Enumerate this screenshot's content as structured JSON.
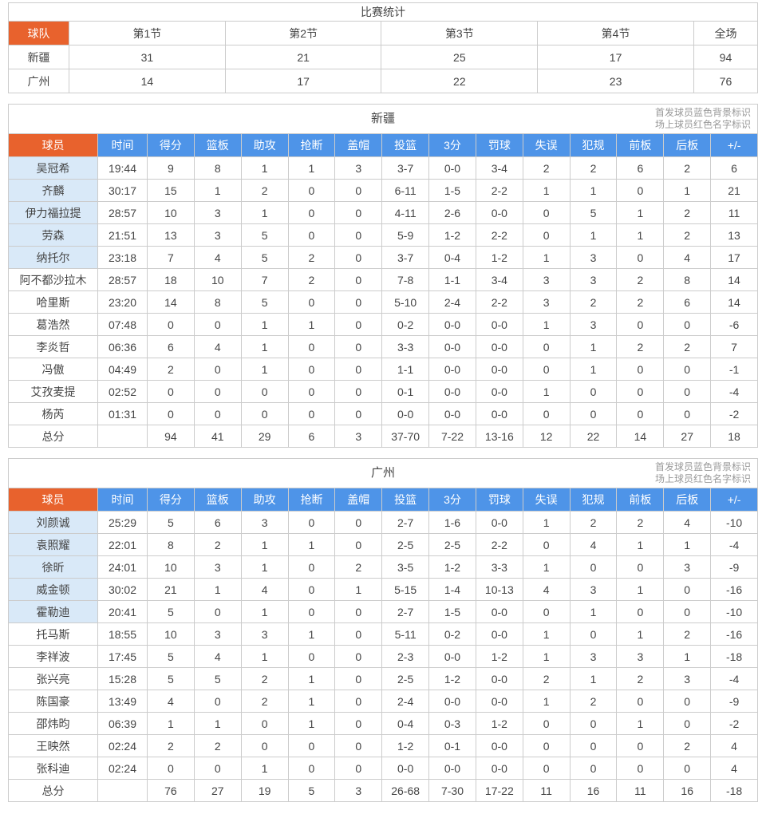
{
  "colors": {
    "header_orange": "#e8622d",
    "header_blue": "#4e94e8",
    "starter_row_bg": "#d9e9f8",
    "border": "#cccccc",
    "legend_text": "#999999"
  },
  "legend": {
    "line1": "首发球员蓝色背景标识",
    "line2": "场上球员红色名字标识"
  },
  "quarter_table": {
    "title": "比赛统计",
    "headers": [
      "球队",
      "第1节",
      "第2节",
      "第3节",
      "第4节",
      "全场"
    ],
    "rows": [
      {
        "team": "新疆",
        "values": [
          "31",
          "21",
          "25",
          "17",
          "94"
        ]
      },
      {
        "team": "广州",
        "values": [
          "14",
          "17",
          "22",
          "23",
          "76"
        ]
      }
    ]
  },
  "player_headers": [
    "球员",
    "时间",
    "得分",
    "篮板",
    "助攻",
    "抢断",
    "盖帽",
    "投篮",
    "3分",
    "罚球",
    "失误",
    "犯规",
    "前板",
    "后板",
    "+/-"
  ],
  "team_tables": [
    {
      "title": "新疆",
      "players": [
        {
          "name": "吴冠希",
          "starter": true,
          "stats": [
            "19:44",
            "9",
            "8",
            "1",
            "1",
            "3",
            "3-7",
            "0-0",
            "3-4",
            "2",
            "2",
            "6",
            "2",
            "6"
          ]
        },
        {
          "name": "齐麟",
          "starter": true,
          "stats": [
            "30:17",
            "15",
            "1",
            "2",
            "0",
            "0",
            "6-11",
            "1-5",
            "2-2",
            "1",
            "1",
            "0",
            "1",
            "21"
          ]
        },
        {
          "name": "伊力福拉提",
          "starter": true,
          "stats": [
            "28:57",
            "10",
            "3",
            "1",
            "0",
            "0",
            "4-11",
            "2-6",
            "0-0",
            "0",
            "5",
            "1",
            "2",
            "11"
          ]
        },
        {
          "name": "劳森",
          "starter": true,
          "stats": [
            "21:51",
            "13",
            "3",
            "5",
            "0",
            "0",
            "5-9",
            "1-2",
            "2-2",
            "0",
            "1",
            "1",
            "2",
            "13"
          ]
        },
        {
          "name": "纳托尔",
          "starter": true,
          "stats": [
            "23:18",
            "7",
            "4",
            "5",
            "2",
            "0",
            "3-7",
            "0-4",
            "1-2",
            "1",
            "3",
            "0",
            "4",
            "17"
          ]
        },
        {
          "name": "阿不都沙拉木",
          "starter": false,
          "stats": [
            "28:57",
            "18",
            "10",
            "7",
            "2",
            "0",
            "7-8",
            "1-1",
            "3-4",
            "3",
            "3",
            "2",
            "8",
            "14"
          ]
        },
        {
          "name": "哈里斯",
          "starter": false,
          "stats": [
            "23:20",
            "14",
            "8",
            "5",
            "0",
            "0",
            "5-10",
            "2-4",
            "2-2",
            "3",
            "2",
            "2",
            "6",
            "14"
          ]
        },
        {
          "name": "葛浩然",
          "starter": false,
          "stats": [
            "07:48",
            "0",
            "0",
            "1",
            "1",
            "0",
            "0-2",
            "0-0",
            "0-0",
            "1",
            "3",
            "0",
            "0",
            "-6"
          ]
        },
        {
          "name": "李炎哲",
          "starter": false,
          "stats": [
            "06:36",
            "6",
            "4",
            "1",
            "0",
            "0",
            "3-3",
            "0-0",
            "0-0",
            "0",
            "1",
            "2",
            "2",
            "7"
          ]
        },
        {
          "name": "冯傲",
          "starter": false,
          "stats": [
            "04:49",
            "2",
            "0",
            "1",
            "0",
            "0",
            "1-1",
            "0-0",
            "0-0",
            "0",
            "1",
            "0",
            "0",
            "-1"
          ]
        },
        {
          "name": "艾孜麦提",
          "starter": false,
          "stats": [
            "02:52",
            "0",
            "0",
            "0",
            "0",
            "0",
            "0-1",
            "0-0",
            "0-0",
            "1",
            "0",
            "0",
            "0",
            "-4"
          ]
        },
        {
          "name": "杨芮",
          "starter": false,
          "stats": [
            "01:31",
            "0",
            "0",
            "0",
            "0",
            "0",
            "0-0",
            "0-0",
            "0-0",
            "0",
            "0",
            "0",
            "0",
            "-2"
          ]
        }
      ],
      "totals": {
        "name": "总分",
        "stats": [
          "",
          "94",
          "41",
          "29",
          "6",
          "3",
          "37-70",
          "7-22",
          "13-16",
          "12",
          "22",
          "14",
          "27",
          "18"
        ]
      }
    },
    {
      "title": "广州",
      "players": [
        {
          "name": "刘颜诚",
          "starter": true,
          "stats": [
            "25:29",
            "5",
            "6",
            "3",
            "0",
            "0",
            "2-7",
            "1-6",
            "0-0",
            "1",
            "2",
            "2",
            "4",
            "-10"
          ]
        },
        {
          "name": "袁照耀",
          "starter": true,
          "stats": [
            "22:01",
            "8",
            "2",
            "1",
            "1",
            "0",
            "2-5",
            "2-5",
            "2-2",
            "0",
            "4",
            "1",
            "1",
            "-4"
          ]
        },
        {
          "name": "徐昕",
          "starter": true,
          "stats": [
            "24:01",
            "10",
            "3",
            "1",
            "0",
            "2",
            "3-5",
            "1-2",
            "3-3",
            "1",
            "0",
            "0",
            "3",
            "-9"
          ]
        },
        {
          "name": "威金顿",
          "starter": true,
          "stats": [
            "30:02",
            "21",
            "1",
            "4",
            "0",
            "1",
            "5-15",
            "1-4",
            "10-13",
            "4",
            "3",
            "1",
            "0",
            "-16"
          ]
        },
        {
          "name": "霍勒迪",
          "starter": true,
          "stats": [
            "20:41",
            "5",
            "0",
            "1",
            "0",
            "0",
            "2-7",
            "1-5",
            "0-0",
            "0",
            "1",
            "0",
            "0",
            "-10"
          ]
        },
        {
          "name": "托马斯",
          "starter": false,
          "stats": [
            "18:55",
            "10",
            "3",
            "3",
            "1",
            "0",
            "5-11",
            "0-2",
            "0-0",
            "1",
            "0",
            "1",
            "2",
            "-16"
          ]
        },
        {
          "name": "李祥波",
          "starter": false,
          "stats": [
            "17:45",
            "5",
            "4",
            "1",
            "0",
            "0",
            "2-3",
            "0-0",
            "1-2",
            "1",
            "3",
            "3",
            "1",
            "-18"
          ]
        },
        {
          "name": "张兴亮",
          "starter": false,
          "stats": [
            "15:28",
            "5",
            "5",
            "2",
            "1",
            "0",
            "2-5",
            "1-2",
            "0-0",
            "2",
            "1",
            "2",
            "3",
            "-4"
          ]
        },
        {
          "name": "陈国豪",
          "starter": false,
          "stats": [
            "13:49",
            "4",
            "0",
            "2",
            "1",
            "0",
            "2-4",
            "0-0",
            "0-0",
            "1",
            "2",
            "0",
            "0",
            "-9"
          ]
        },
        {
          "name": "邵炜昀",
          "starter": false,
          "stats": [
            "06:39",
            "1",
            "1",
            "0",
            "1",
            "0",
            "0-4",
            "0-3",
            "1-2",
            "0",
            "0",
            "1",
            "0",
            "-2"
          ]
        },
        {
          "name": "王映然",
          "starter": false,
          "stats": [
            "02:24",
            "2",
            "2",
            "0",
            "0",
            "0",
            "1-2",
            "0-1",
            "0-0",
            "0",
            "0",
            "0",
            "2",
            "4"
          ]
        },
        {
          "name": "张科迪",
          "starter": false,
          "stats": [
            "02:24",
            "0",
            "0",
            "1",
            "0",
            "0",
            "0-0",
            "0-0",
            "0-0",
            "0",
            "0",
            "0",
            "0",
            "4"
          ]
        }
      ],
      "totals": {
        "name": "总分",
        "stats": [
          "",
          "76",
          "27",
          "19",
          "5",
          "3",
          "26-68",
          "7-30",
          "17-22",
          "11",
          "16",
          "11",
          "16",
          "-18"
        ]
      }
    }
  ]
}
